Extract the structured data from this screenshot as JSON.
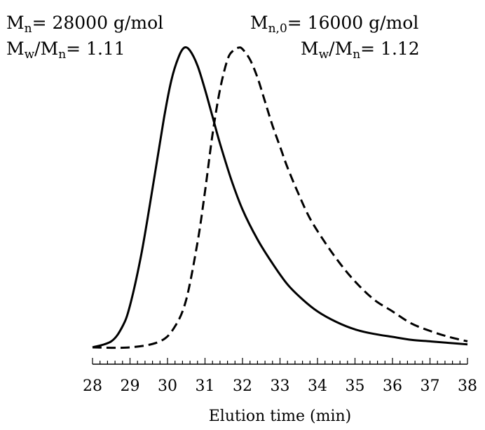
{
  "chart_data": {
    "type": "line",
    "title": "",
    "xlabel": "Elution time (min)",
    "ylabel": "",
    "xlim": [
      28,
      38
    ],
    "ylim": [
      0,
      1
    ],
    "x_ticks": [
      "28",
      "29",
      "30",
      "31",
      "32",
      "33",
      "34",
      "35",
      "36",
      "37",
      "38"
    ],
    "grid": false,
    "series": [
      {
        "style": "solid",
        "x": [
          28.0,
          28.5,
          28.8,
          29.0,
          29.3,
          29.6,
          29.9,
          30.1,
          30.3,
          30.45,
          30.6,
          30.8,
          31.0,
          31.2,
          31.4,
          31.7,
          32.0,
          32.4,
          32.8,
          33.2,
          33.6,
          34.0,
          34.5,
          35.0,
          35.5,
          36.0,
          36.5,
          37.0,
          37.5,
          38.0
        ],
        "y": [
          0.0,
          0.02,
          0.07,
          0.14,
          0.31,
          0.53,
          0.76,
          0.89,
          0.97,
          1.0,
          0.99,
          0.94,
          0.86,
          0.77,
          0.68,
          0.56,
          0.46,
          0.36,
          0.28,
          0.21,
          0.16,
          0.12,
          0.085,
          0.06,
          0.045,
          0.035,
          0.025,
          0.02,
          0.015,
          0.01
        ]
      },
      {
        "style": "dashed",
        "x": [
          28.0,
          29.0,
          29.8,
          30.2,
          30.5,
          30.8,
          31.0,
          31.2,
          31.4,
          31.6,
          31.75,
          31.9,
          32.0,
          32.2,
          32.4,
          32.6,
          32.8,
          33.0,
          33.2,
          33.5,
          33.8,
          34.2,
          34.6,
          35.0,
          35.5,
          36.0,
          36.5,
          37.0,
          37.5,
          38.0
        ],
        "y": [
          0.0,
          0.0,
          0.02,
          0.07,
          0.16,
          0.35,
          0.52,
          0.71,
          0.86,
          0.96,
          0.99,
          1.0,
          0.995,
          0.96,
          0.9,
          0.82,
          0.74,
          0.67,
          0.6,
          0.51,
          0.43,
          0.35,
          0.28,
          0.22,
          0.16,
          0.12,
          0.08,
          0.055,
          0.035,
          0.02
        ]
      }
    ],
    "annotations": [
      {
        "base": "M",
        "sub": "n",
        "text": "= 28000 g/mol"
      },
      {
        "base": "M",
        "sub": "w",
        "mid": "/M",
        "sub2": "n",
        "text": "= 1.11"
      },
      {
        "base": "M",
        "sub": "n,0",
        "text": "= 16000 g/mol"
      },
      {
        "base": "M",
        "sub": "w",
        "mid": "/M",
        "sub2": "n",
        "text": "= 1.12"
      }
    ]
  }
}
